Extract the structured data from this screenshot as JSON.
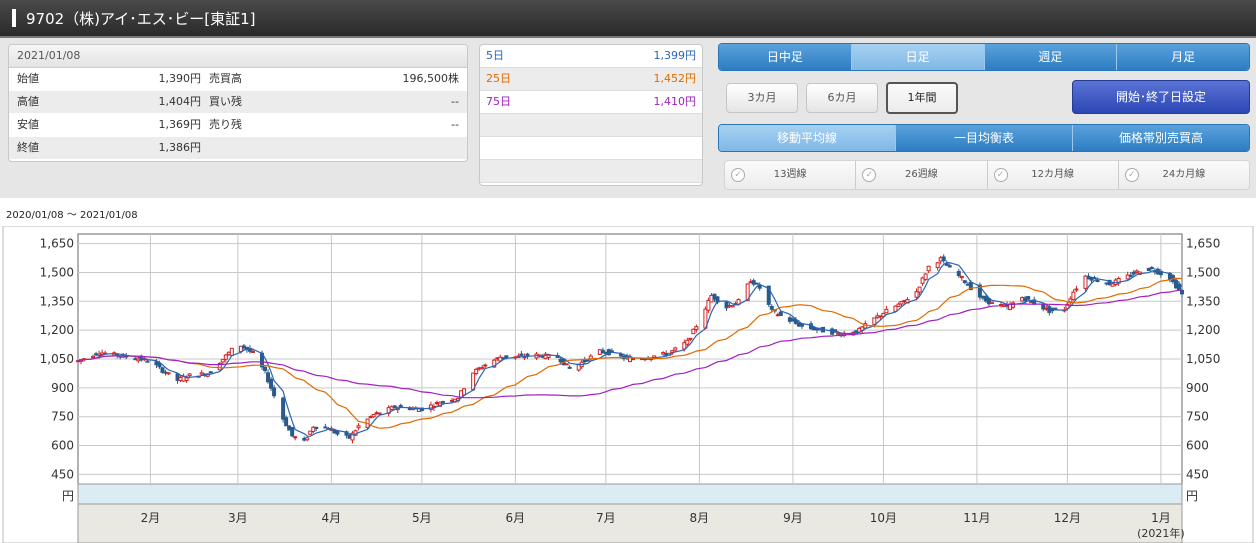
{
  "title": "9702（株)アイ･エス･ビー[東証1]",
  "prices": {
    "date": "2021/01/08",
    "rows": [
      {
        "l1": "始値",
        "v1": "1,390円",
        "l2": "売買高",
        "v2": "196,500株"
      },
      {
        "l1": "高値",
        "v1": "1,404円",
        "l2": "買い残",
        "v2": "--"
      },
      {
        "l1": "安値",
        "v1": "1,369円",
        "l2": "売り残",
        "v2": "--"
      },
      {
        "l1": "終値",
        "v1": "1,386円",
        "l2": "",
        "v2": ""
      }
    ]
  },
  "ma_table": [
    {
      "label": "5日",
      "value": "1,399円",
      "color": "#2a64b4"
    },
    {
      "label": "25日",
      "value": "1,452円",
      "color": "#e06a00"
    },
    {
      "label": "75日",
      "value": "1,410円",
      "color": "#a020c0"
    }
  ],
  "period_tabs": [
    "日中足",
    "日足",
    "週足",
    "月足"
  ],
  "period_selected": 1,
  "range_buttons": [
    "3カ月",
    "6カ月",
    "1年間"
  ],
  "range_selected": 2,
  "set_button": "開始･終了日設定",
  "indicator_tabs": [
    "移動平均線",
    "一目均衡表",
    "価格帯別売買高"
  ],
  "indicator_selected": 0,
  "ma_checks": [
    "13週線",
    "26週線",
    "12カ月線",
    "24カ月線"
  ],
  "date_range": "2020/01/08 ～ 2021/01/08",
  "chart_data": {
    "type": "candlestick",
    "ylim": [
      400,
      1700
    ],
    "yticks": [
      1650,
      1500,
      1350,
      1200,
      1050,
      900,
      750,
      600,
      450
    ],
    "ytick_labels": [
      "1,650",
      "1,500",
      "1,350",
      "1,200",
      "1,050",
      "900",
      "750",
      "600",
      "450"
    ],
    "y_unit": "円",
    "x_range": [
      "2020/01/08",
      "2021/01/08"
    ],
    "x_months": [
      {
        "label": "2月",
        "date": "2020-02-01"
      },
      {
        "label": "3月",
        "date": "2020-03-01"
      },
      {
        "label": "4月",
        "date": "2020-04-01"
      },
      {
        "label": "5月",
        "date": "2020-05-01"
      },
      {
        "label": "6月",
        "date": "2020-06-01"
      },
      {
        "label": "7月",
        "date": "2020-07-01"
      },
      {
        "label": "8月",
        "date": "2020-08-01"
      },
      {
        "label": "9月",
        "date": "2020-09-01"
      },
      {
        "label": "10月",
        "date": "2020-10-01"
      },
      {
        "label": "11月",
        "date": "2020-11-01"
      },
      {
        "label": "12月",
        "date": "2020-12-01"
      },
      {
        "label": "1月",
        "date": "2021-01-01"
      }
    ],
    "year_label": "(2021年)",
    "close_keypoints": [
      [
        "2020-01-08",
        1040
      ],
      [
        "2020-01-15",
        1085
      ],
      [
        "2020-01-25",
        1060
      ],
      [
        "2020-02-01",
        1040
      ],
      [
        "2020-02-05",
        990
      ],
      [
        "2020-02-10",
        940
      ],
      [
        "2020-02-14",
        965
      ],
      [
        "2020-02-20",
        975
      ],
      [
        "2020-02-25",
        1050
      ],
      [
        "2020-03-01",
        1130
      ],
      [
        "2020-03-06",
        1080
      ],
      [
        "2020-03-10",
        980
      ],
      [
        "2020-03-13",
        860
      ],
      [
        "2020-03-16",
        740
      ],
      [
        "2020-03-19",
        650
      ],
      [
        "2020-03-23",
        620
      ],
      [
        "2020-03-26",
        700
      ],
      [
        "2020-03-31",
        690
      ],
      [
        "2020-04-03",
        660
      ],
      [
        "2020-04-07",
        640
      ],
      [
        "2020-04-10",
        700
      ],
      [
        "2020-04-15",
        760
      ],
      [
        "2020-04-22",
        800
      ],
      [
        "2020-05-01",
        790
      ],
      [
        "2020-05-08",
        830
      ],
      [
        "2020-05-13",
        850
      ],
      [
        "2020-05-18",
        980
      ],
      [
        "2020-05-22",
        1020
      ],
      [
        "2020-05-27",
        1060
      ],
      [
        "2020-06-01",
        1060
      ],
      [
        "2020-06-08",
        1070
      ],
      [
        "2020-06-15",
        1060
      ],
      [
        "2020-06-19",
        1000
      ],
      [
        "2020-06-24",
        1040
      ],
      [
        "2020-06-29",
        1090
      ],
      [
        "2020-07-03",
        1080
      ],
      [
        "2020-07-08",
        1050
      ],
      [
        "2020-07-15",
        1060
      ],
      [
        "2020-07-22",
        1080
      ],
      [
        "2020-07-28",
        1140
      ],
      [
        "2020-08-01",
        1250
      ],
      [
        "2020-08-05",
        1380
      ],
      [
        "2020-08-10",
        1320
      ],
      [
        "2020-08-14",
        1350
      ],
      [
        "2020-08-18",
        1460
      ],
      [
        "2020-08-21",
        1420
      ],
      [
        "2020-08-25",
        1300
      ],
      [
        "2020-08-31",
        1250
      ],
      [
        "2020-09-04",
        1220
      ],
      [
        "2020-09-10",
        1200
      ],
      [
        "2020-09-17",
        1180
      ],
      [
        "2020-09-23",
        1200
      ],
      [
        "2020-09-28",
        1260
      ],
      [
        "2020-10-02",
        1300
      ],
      [
        "2020-10-07",
        1340
      ],
      [
        "2020-10-12",
        1400
      ],
      [
        "2020-10-16",
        1530
      ],
      [
        "2020-10-20",
        1570
      ],
      [
        "2020-10-23",
        1520
      ],
      [
        "2020-10-27",
        1470
      ],
      [
        "2020-10-30",
        1420
      ],
      [
        "2020-11-03",
        1360
      ],
      [
        "2020-11-06",
        1340
      ],
      [
        "2020-11-11",
        1320
      ],
      [
        "2020-11-16",
        1370
      ],
      [
        "2020-11-20",
        1340
      ],
      [
        "2020-11-25",
        1300
      ],
      [
        "2020-11-30",
        1310
      ],
      [
        "2020-12-03",
        1400
      ],
      [
        "2020-12-07",
        1480
      ],
      [
        "2020-12-11",
        1460
      ],
      [
        "2020-12-15",
        1440
      ],
      [
        "2020-12-21",
        1480
      ],
      [
        "2020-12-25",
        1510
      ],
      [
        "2020-12-29",
        1520
      ],
      [
        "2021-01-04",
        1470
      ],
      [
        "2021-01-06",
        1430
      ],
      [
        "2021-01-08",
        1386
      ]
    ],
    "series": [
      {
        "name": "5日",
        "color": "#2a64b4"
      },
      {
        "name": "25日",
        "color": "#e06a00"
      },
      {
        "name": "75日",
        "color": "#a020c0"
      }
    ]
  }
}
